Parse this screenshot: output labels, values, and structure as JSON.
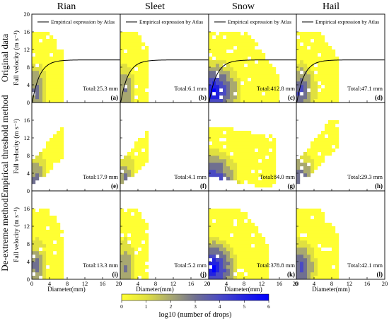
{
  "chart_data": {
    "type": "heatmap",
    "column_titles": [
      "Rian",
      "Sleet",
      "Snow",
      "Hail"
    ],
    "row_titles": [
      "Original data",
      "Empirical threshold method",
      "De-extreme method"
    ],
    "y_axis_label": "Fall velocity (m s⁻¹)",
    "x_axis_label": "Diameter(mm)",
    "x_range": [
      0,
      20
    ],
    "y_range": [
      0,
      20
    ],
    "x_ticks": [
      "0",
      "4",
      "8",
      "12",
      "16",
      "20"
    ],
    "y_ticks": [
      "0",
      "4",
      "8",
      "12",
      "16",
      "20"
    ],
    "legend_label": "Empirical expression by Atlas",
    "colorbar": {
      "label": "log10 (number of drops)",
      "ticks": [
        "0",
        "1",
        "2",
        "3",
        "4",
        "5",
        "6"
      ],
      "range": [
        0,
        6
      ],
      "colors": [
        "#ffff33",
        "#e0e040",
        "#a8a870",
        "#707090",
        "#4a4ac4",
        "#2222e0",
        "#0000ff"
      ]
    },
    "panels": [
      {
        "letter": "(a)",
        "total": "Total:25.3 mm",
        "row": 0,
        "col": 0,
        "curve": true,
        "max_d": 6.5,
        "max_v": 15.5,
        "dense": 3.0
      },
      {
        "letter": "(b)",
        "total": "Total:6.1 mm",
        "row": 0,
        "col": 1,
        "curve": true,
        "max_d": 6.0,
        "max_v": 15.5,
        "dense": 2.6
      },
      {
        "letter": "(c)",
        "total": "Total:412.8 mm",
        "row": 0,
        "col": 2,
        "curve": true,
        "max_d": 15.5,
        "max_v": 15.5,
        "dense": 5.2
      },
      {
        "letter": "(d)",
        "total": "Total:47.1 mm",
        "row": 0,
        "col": 3,
        "curve": true,
        "max_d": 9.0,
        "max_v": 15.5,
        "dense": 3.5
      },
      {
        "letter": "(e)",
        "total": "Total:17.9 mm",
        "row": 1,
        "col": 0,
        "curve": false,
        "max_d": 6.5,
        "max_v": 14.0,
        "dense": 2.8
      },
      {
        "letter": "(f)",
        "total": "Total:4.1 mm",
        "row": 1,
        "col": 1,
        "curve": false,
        "max_d": 6.0,
        "max_v": 14.0,
        "dense": 2.4
      },
      {
        "letter": "(g)",
        "total": "Total:84.0 mm",
        "row": 1,
        "col": 2,
        "curve": false,
        "max_d": 14.5,
        "max_v": 14.5,
        "dense": 4.3
      },
      {
        "letter": "(h)",
        "total": "Total:29.3 mm",
        "row": 1,
        "col": 3,
        "curve": false,
        "max_d": 9.0,
        "max_v": 15.5,
        "dense": 3.2
      },
      {
        "letter": "(i)",
        "total": "Total:13.3 mm",
        "row": 2,
        "col": 0,
        "curve": false,
        "max_d": 6.5,
        "max_v": 15.5,
        "dense": 2.8
      },
      {
        "letter": "(j)",
        "total": "Total:5.2 mm",
        "row": 2,
        "col": 1,
        "curve": false,
        "max_d": 6.0,
        "max_v": 15.5,
        "dense": 2.6
      },
      {
        "letter": "(k)",
        "total": "Total:378.8 mm",
        "row": 2,
        "col": 2,
        "curve": false,
        "max_d": 13.5,
        "max_v": 15.5,
        "dense": 5.2
      },
      {
        "letter": "(l)",
        "total": "Total:42.1 mm",
        "row": 2,
        "col": 3,
        "curve": false,
        "max_d": 9.0,
        "max_v": 15.5,
        "dense": 3.5
      }
    ]
  }
}
